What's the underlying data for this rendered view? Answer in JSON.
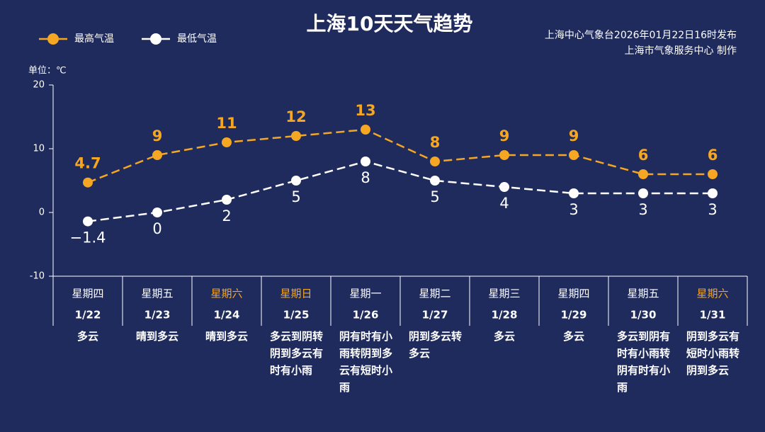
{
  "chart_data": {
    "type": "line",
    "title": "上海10天天气趋势",
    "source_lines": [
      "上海中心气象台2026年01月22日16时发布",
      "上海市气象服务中心  制作"
    ],
    "unit_label": "单位：℃",
    "categories": [
      "1/22",
      "1/23",
      "1/24",
      "1/25",
      "1/26",
      "1/27",
      "1/28",
      "1/29",
      "1/30",
      "1/31"
    ],
    "weekdays": [
      "星期四",
      "星期五",
      "星期六",
      "星期日",
      "星期一",
      "星期二",
      "星期三",
      "星期四",
      "星期五",
      "星期六"
    ],
    "weekday_colors": [
      "#ffffff",
      "#ffffff",
      "#f5a623",
      "#f5a623",
      "#ffffff",
      "#ffffff",
      "#ffffff",
      "#ffffff",
      "#ffffff",
      "#f5a623"
    ],
    "weather": [
      "多云",
      "晴到多云",
      "晴到多云",
      "多云到阴转阴到多云有时有小雨",
      "阴有时有小雨转阴到多云有短时小雨",
      "阴到多云转多云",
      "多云",
      "多云",
      "多云到阴有时有小雨转阴有时有小雨",
      "阴到多云有短时小雨转阴到多云"
    ],
    "series": [
      {
        "name": "最高气温",
        "color": "#f5a623",
        "values": [
          4.7,
          9,
          11,
          12,
          13,
          8,
          9,
          9,
          6,
          6
        ],
        "label_position": "above"
      },
      {
        "name": "最低气温",
        "color": "#ffffff",
        "values": [
          -1.4,
          0,
          2,
          5,
          8,
          5,
          4,
          3,
          3,
          3
        ],
        "value_labels": [
          "−1.4",
          "0",
          "2",
          "5",
          "8",
          "5",
          "4",
          "3",
          "3",
          "3"
        ],
        "label_position": "below"
      }
    ],
    "ylim": [
      -10,
      20
    ],
    "yticks": [
      -10,
      0,
      10,
      20
    ],
    "grid": false
  }
}
